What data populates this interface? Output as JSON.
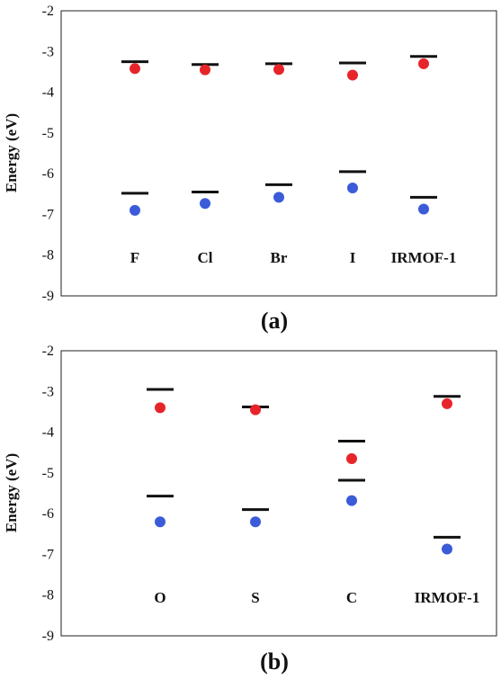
{
  "chart_data": [
    {
      "type": "scatter",
      "panel_label": "(a)",
      "ylabel": "Energy (eV)",
      "ylim": [
        -9,
        -2
      ],
      "yticks": [
        "-2",
        "-3",
        "-4",
        "-5",
        "-6",
        "-7",
        "-8",
        "-9"
      ],
      "categories": [
        "F",
        "Cl",
        "Br",
        "I",
        "IRMOF-1"
      ],
      "series": [
        {
          "marker": "dash",
          "color": "#111111",
          "values": [
            -3.25,
            -3.32,
            -3.3,
            -3.28,
            -3.12
          ]
        },
        {
          "marker": "circle",
          "color": "#e8242b",
          "values": [
            -3.42,
            -3.45,
            -3.44,
            -3.58,
            -3.3
          ]
        },
        {
          "marker": "dash",
          "color": "#111111",
          "values": [
            -6.48,
            -6.45,
            -6.27,
            -5.95,
            -6.58
          ]
        },
        {
          "marker": "circle",
          "color": "#3b5bd9",
          "values": [
            -6.9,
            -6.73,
            -6.58,
            -6.35,
            -6.87
          ]
        }
      ]
    },
    {
      "type": "scatter",
      "panel_label": "(b)",
      "ylabel": "Energy (eV)",
      "ylim": [
        -9,
        -2
      ],
      "yticks": [
        "-2",
        "-3",
        "-4",
        "-5",
        "-6",
        "-7",
        "-8",
        "-9"
      ],
      "categories": [
        "O",
        "S",
        "C",
        "IRMOF-1"
      ],
      "series": [
        {
          "marker": "dash",
          "color": "#111111",
          "values": [
            -2.95,
            -3.38,
            -4.22,
            -3.12
          ]
        },
        {
          "marker": "circle",
          "color": "#e8242b",
          "values": [
            -3.4,
            -3.45,
            -4.65,
            -3.3
          ]
        },
        {
          "marker": "dash",
          "color": "#111111",
          "values": [
            -5.57,
            -5.9,
            -5.18,
            -6.58
          ]
        },
        {
          "marker": "circle",
          "color": "#3b5bd9",
          "values": [
            -6.2,
            -6.2,
            -5.68,
            -6.87
          ]
        }
      ]
    }
  ]
}
